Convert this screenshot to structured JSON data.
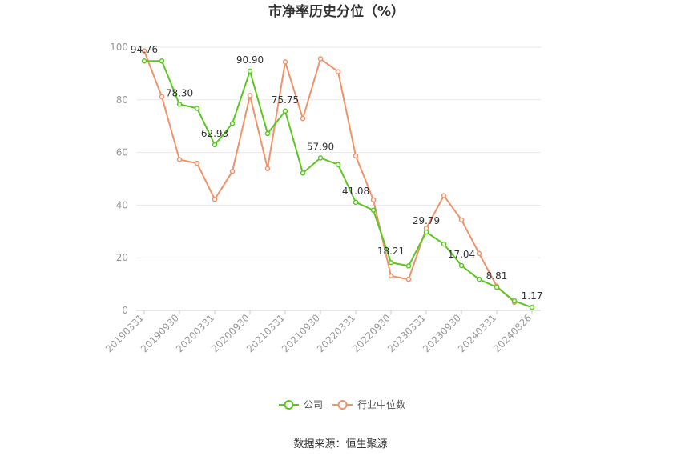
{
  "chart_data": {
    "type": "line",
    "title": "市净率历史分位（%）",
    "source": "数据来源：恒生聚源",
    "ylim": [
      0,
      100
    ],
    "yticks": [
      0,
      20,
      40,
      60,
      80,
      100
    ],
    "grid": true,
    "legend_position": "bottom",
    "x": [
      "20190331",
      "20190630",
      "20190930",
      "20191231",
      "20200331",
      "20200630",
      "20200930",
      "20201231",
      "20210331",
      "20210630",
      "20210930",
      "20211231",
      "20220331",
      "20220630",
      "20220930",
      "20221231",
      "20230331",
      "20230630",
      "20230930",
      "20231231",
      "20240331",
      "20240630",
      "20240826"
    ],
    "xtick_labels": [
      "20190331",
      "20190930",
      "20200331",
      "20200930",
      "20210331",
      "20210930",
      "20220331",
      "20220930",
      "20230331",
      "20230930",
      "20240331",
      "20240826"
    ],
    "series": [
      {
        "name": "公司",
        "color": "#5ac81e",
        "values": [
          94.76,
          94.76,
          78.3,
          76.8,
          62.93,
          71.0,
          90.9,
          67.2,
          75.75,
          52.2,
          57.9,
          55.4,
          41.08,
          38.1,
          18.21,
          16.9,
          29.79,
          25.2,
          17.04,
          11.8,
          8.81,
          3.6,
          1.17
        ],
        "labels": {
          "0": "94.76",
          "2": "78.30",
          "4": "62.93",
          "6": "90.90",
          "8": "75.75",
          "10": "57.90",
          "12": "41.08",
          "14": "18.21",
          "16": "29.79",
          "18": "17.04",
          "20": "8.81",
          "22": "1.17"
        }
      },
      {
        "name": "行业中位数",
        "color": "#f0926a",
        "values": [
          98.6,
          81.2,
          57.3,
          55.9,
          42.2,
          52.8,
          81.6,
          53.9,
          94.4,
          72.9,
          95.6,
          90.7,
          58.7,
          42.0,
          13.1,
          11.8,
          31.2,
          43.6,
          34.4,
          21.6,
          9.2,
          3.1,
          null
        ]
      }
    ]
  }
}
